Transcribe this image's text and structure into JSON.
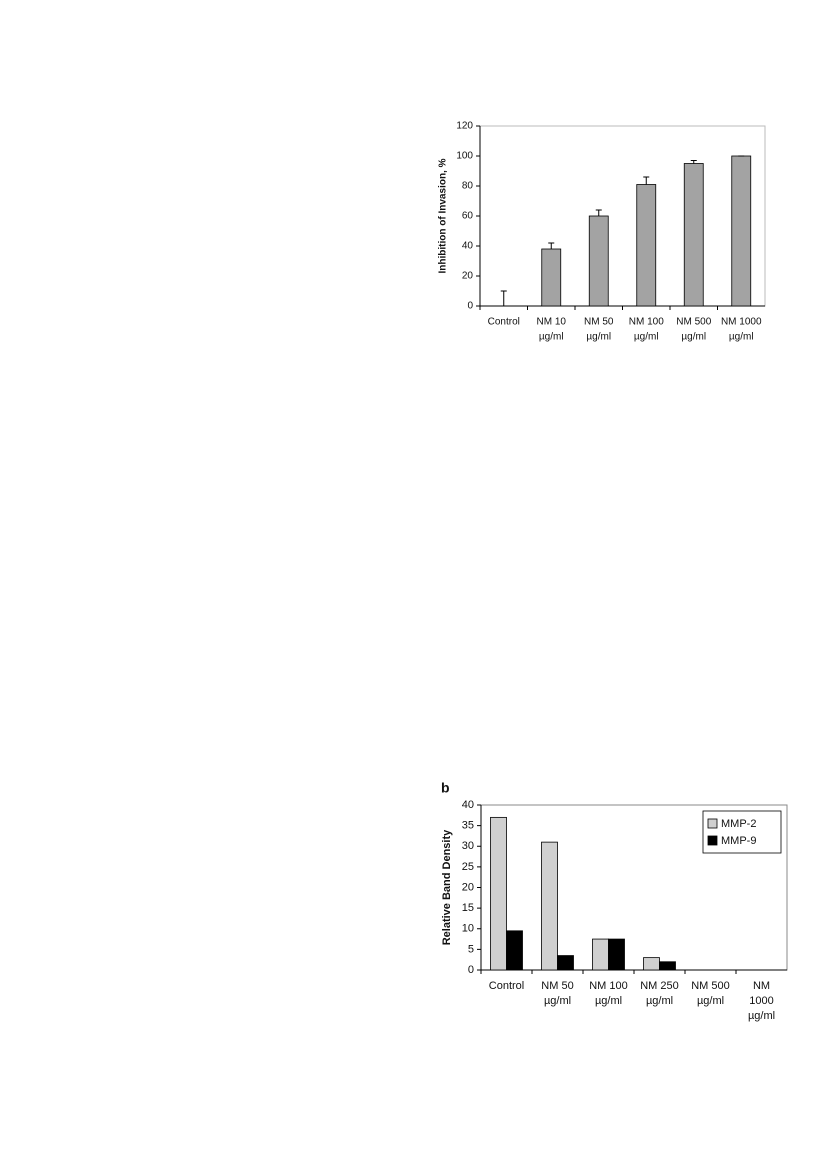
{
  "chart_data": [
    {
      "type": "bar",
      "y_label": "Inhibition of Invasion, %",
      "categories": [
        [
          "Control"
        ],
        [
          "NM 10",
          "µg/ml"
        ],
        [
          "NM 50",
          "µg/ml"
        ],
        [
          "NM 100",
          "µg/ml"
        ],
        [
          "NM 500",
          "µg/ml"
        ],
        [
          "NM 1000",
          "µg/ml"
        ]
      ],
      "series": [
        {
          "color": "#a3a3a3",
          "values": [
            0,
            38,
            60,
            81,
            95,
            100
          ],
          "errors": [
            10,
            4,
            4,
            5,
            2,
            0
          ]
        }
      ],
      "ylim": [
        0,
        120
      ],
      "yticks": [
        0,
        20,
        40,
        60,
        80,
        100,
        120
      ],
      "grid": false
    },
    {
      "type": "bar",
      "panel_label": "b",
      "y_label": "Relative Band Density",
      "categories": [
        [
          "Control"
        ],
        [
          "NM 50",
          "µg/ml"
        ],
        [
          "NM 100",
          "µg/ml"
        ],
        [
          "NM 250",
          "µg/ml"
        ],
        [
          "NM 500",
          "µg/ml"
        ],
        [
          "NM",
          "1000",
          "µg/ml"
        ]
      ],
      "series": [
        {
          "name": "MMP-2",
          "color": "#d0d0d0",
          "values": [
            37,
            31,
            7.5,
            3,
            0,
            0
          ]
        },
        {
          "name": "MMP-9",
          "color": "#000000",
          "values": [
            9.5,
            3.5,
            7.5,
            2,
            0,
            0
          ]
        }
      ],
      "ylim": [
        0,
        40
      ],
      "yticks": [
        0,
        5,
        10,
        15,
        20,
        25,
        30,
        35,
        40
      ],
      "grid": false,
      "legend": "top-right"
    }
  ]
}
